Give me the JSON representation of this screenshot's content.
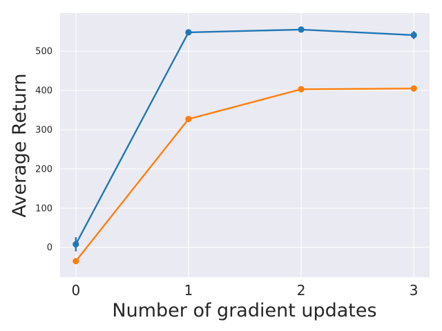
{
  "chart_data": {
    "type": "line",
    "title": "",
    "xlabel": "Number of gradient updates",
    "ylabel": "Average Return",
    "x": [
      0,
      1,
      2,
      3
    ],
    "x_ticks": [
      "0",
      "1",
      "2",
      "3"
    ],
    "y_ticks": [
      "0",
      "100",
      "200",
      "300",
      "400",
      "500"
    ],
    "xlim": [
      -0.14,
      3.14
    ],
    "ylim": [
      -76,
      597
    ],
    "grid": true,
    "legend": "none",
    "series": [
      {
        "color": "#1f77b4",
        "values": [
          8,
          548,
          555,
          541
        ],
        "errors": [
          18,
          7,
          7,
          10
        ]
      },
      {
        "color": "#ff7f0e",
        "values": [
          -35,
          327,
          403,
          405
        ],
        "errors": [
          3,
          5,
          3,
          3
        ]
      }
    ],
    "colors": {
      "plot_background": "#eaeaf2",
      "grid": "#ffffff",
      "text": "#262626"
    }
  }
}
